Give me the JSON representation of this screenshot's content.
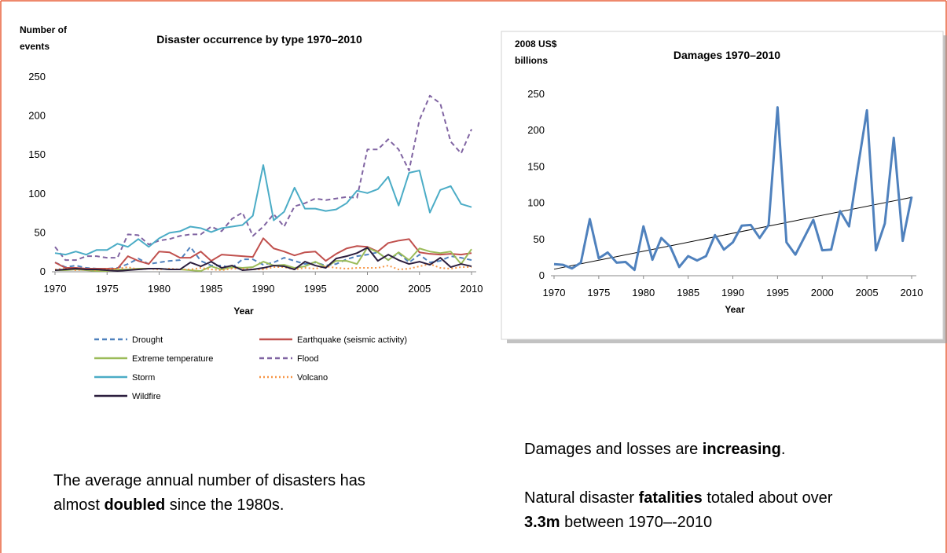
{
  "chart_data": [
    {
      "type": "line",
      "title": "Disaster occurrence by type 1970–2010",
      "ylabel": [
        "Number of",
        "events"
      ],
      "xlabel": "Year",
      "x": [
        1970,
        1971,
        1972,
        1973,
        1974,
        1975,
        1976,
        1977,
        1978,
        1979,
        1980,
        1981,
        1982,
        1983,
        1984,
        1985,
        1986,
        1987,
        1988,
        1989,
        1990,
        1991,
        1992,
        1993,
        1994,
        1995,
        1996,
        1997,
        1998,
        1999,
        2000,
        2001,
        2002,
        2003,
        2004,
        2005,
        2006,
        2007,
        2008,
        2009,
        2010
      ],
      "xlim": [
        1970,
        2010
      ],
      "xticks": [
        1970,
        1975,
        1980,
        1985,
        1990,
        1995,
        2000,
        2005,
        2010
      ],
      "ylim": [
        0,
        250
      ],
      "yticks": [
        0,
        50,
        100,
        150,
        200,
        250
      ],
      "legend": "bottom",
      "series": [
        {
          "name": "Drought",
          "color": "#4f81bd",
          "style": "dashed",
          "values": [
            12,
            6,
            8,
            5,
            4,
            4,
            5,
            10,
            17,
            10,
            12,
            14,
            15,
            32,
            14,
            8,
            8,
            5,
            16,
            16,
            9,
            12,
            18,
            14,
            10,
            12,
            8,
            10,
            16,
            20,
            22,
            25,
            15,
            24,
            12,
            22,
            12,
            14,
            20,
            18,
            15
          ]
        },
        {
          "name": "Earthquake (seismic activity)",
          "color": "#c0504d",
          "style": "solid",
          "values": [
            12,
            5,
            5,
            4,
            4,
            4,
            4,
            20,
            14,
            10,
            26,
            25,
            18,
            18,
            26,
            14,
            22,
            21,
            20,
            19,
            43,
            30,
            26,
            21,
            25,
            26,
            14,
            23,
            30,
            33,
            32,
            26,
            37,
            40,
            42,
            25,
            23,
            22,
            23,
            22,
            24
          ]
        },
        {
          "name": "Extreme temperature",
          "color": "#9bbb59",
          "style": "solid",
          "values": [
            2,
            2,
            3,
            2,
            1,
            1,
            3,
            3,
            4,
            4,
            4,
            3,
            3,
            2,
            1,
            7,
            3,
            6,
            5,
            6,
            13,
            8,
            9,
            5,
            7,
            13,
            6,
            14,
            14,
            10,
            31,
            25,
            15,
            25,
            15,
            30,
            26,
            24,
            26,
            10,
            29
          ]
        },
        {
          "name": "Flood",
          "color": "#8064a2",
          "style": "dashed",
          "values": [
            32,
            15,
            15,
            20,
            20,
            18,
            18,
            48,
            47,
            35,
            40,
            42,
            46,
            48,
            48,
            58,
            52,
            68,
            76,
            46,
            58,
            74,
            58,
            84,
            88,
            94,
            92,
            94,
            96,
            95,
            157,
            157,
            170,
            157,
            130,
            195,
            226,
            216,
            167,
            152,
            183
          ]
        },
        {
          "name": "Storm",
          "color": "#4bacc6",
          "style": "solid",
          "values": [
            24,
            22,
            26,
            22,
            28,
            28,
            36,
            32,
            42,
            32,
            43,
            50,
            52,
            58,
            56,
            51,
            56,
            58,
            60,
            72,
            137,
            66,
            77,
            108,
            81,
            81,
            78,
            80,
            88,
            104,
            101,
            106,
            122,
            85,
            127,
            130,
            76,
            105,
            110,
            87,
            83
          ]
        },
        {
          "name": "Volcano",
          "color": "#f79646",
          "style": "dotted",
          "values": [
            3,
            4,
            2,
            3,
            2,
            3,
            4,
            6,
            3,
            4,
            3,
            4,
            3,
            3,
            5,
            3,
            2,
            4,
            4,
            3,
            3,
            6,
            6,
            3,
            5,
            4,
            7,
            5,
            4,
            5,
            5,
            5,
            8,
            3,
            4,
            7,
            10,
            5,
            4,
            6,
            6
          ]
        },
        {
          "name": "Wildfire",
          "color": "#2c1e3e",
          "style": "solid",
          "values": [
            2,
            3,
            4,
            3,
            3,
            2,
            1,
            2,
            3,
            4,
            4,
            3,
            3,
            12,
            7,
            13,
            5,
            8,
            2,
            3,
            5,
            8,
            7,
            3,
            13,
            8,
            5,
            17,
            20,
            24,
            31,
            14,
            22,
            15,
            10,
            13,
            9,
            18,
            6,
            10,
            7
          ]
        }
      ]
    },
    {
      "type": "line",
      "title": "Damages 1970–2010",
      "ylabel": [
        "2008 US$",
        "billions"
      ],
      "xlabel": "Year",
      "x": [
        1970,
        1971,
        1972,
        1973,
        1974,
        1975,
        1976,
        1977,
        1978,
        1979,
        1980,
        1981,
        1982,
        1983,
        1984,
        1985,
        1986,
        1987,
        1988,
        1989,
        1990,
        1991,
        1992,
        1993,
        1994,
        1995,
        1996,
        1997,
        1998,
        1999,
        2000,
        2001,
        2002,
        2003,
        2004,
        2005,
        2006,
        2007,
        2008,
        2009,
        2010
      ],
      "xlim": [
        1970,
        2010
      ],
      "xticks": [
        1970,
        1975,
        1980,
        1985,
        1990,
        1995,
        2000,
        2005,
        2010
      ],
      "ylim": [
        0,
        250
      ],
      "yticks": [
        0,
        50,
        100,
        150,
        200,
        250
      ],
      "series": [
        {
          "color": "#4f81bd",
          "style": "solid",
          "values": [
            16,
            15,
            10,
            18,
            78,
            24,
            32,
            18,
            19,
            8,
            68,
            22,
            52,
            40,
            12,
            27,
            21,
            27,
            56,
            36,
            46,
            69,
            70,
            52,
            70,
            232,
            46,
            29,
            53,
            77,
            35,
            36,
            89,
            68,
            150,
            228,
            35,
            72,
            190,
            48,
            109
          ]
        }
      ],
      "trend": {
        "color": "#000000",
        "x": [
          1970,
          2010
        ],
        "values": [
          9,
          108
        ]
      }
    }
  ],
  "notes": [
    [
      [
        {
          "text": "The average annual number of disasters has",
          "bold": false
        }
      ],
      [
        {
          "text": "almost ",
          "bold": false
        },
        {
          "text": "doubled",
          "bold": true
        },
        {
          "text": " since the 1980s.",
          "bold": false
        }
      ]
    ],
    [
      [
        {
          "text": "Damages and losses are ",
          "bold": false
        },
        {
          "text": "increasing",
          "bold": true
        },
        {
          "text": ".",
          "bold": false
        }
      ]
    ],
    [
      [
        {
          "text": "Natural disaster ",
          "bold": false
        },
        {
          "text": "fatalities",
          "bold": true
        },
        {
          "text": " totaled about over",
          "bold": false
        }
      ],
      [
        {
          "text": "3.3m",
          "bold": true
        },
        {
          "text": " between 1970–-2010",
          "bold": false
        }
      ]
    ]
  ]
}
